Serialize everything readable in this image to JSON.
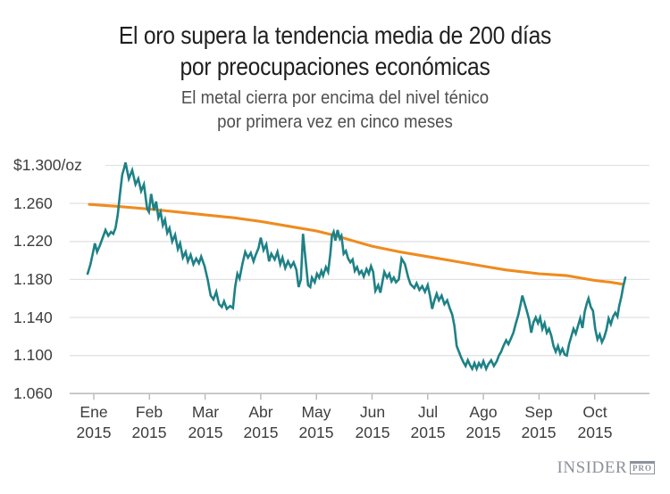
{
  "header": {
    "title_line1": "El oro supera la tendencia media de 200 días",
    "title_line2": "por preocupaciones económicas",
    "subtitle_line1": "El metal cierra por encima del nivel ténico",
    "subtitle_line2": "por primera vez en cinco meses"
  },
  "branding": {
    "name": "INSIDER",
    "badge": "PRO"
  },
  "colors": {
    "gold_line": "#1e8186",
    "ma_line": "#ef8b1f",
    "grid": "#e2e2e2",
    "axis": "#bcbcbc",
    "title_text": "#1f1f1f",
    "subtitle_text": "#4e4e4e",
    "axis_text": "#3d3d3d",
    "logo": "#8d929b"
  },
  "chart_data": {
    "type": "line",
    "title": "El oro supera la tendencia media de 200 días por preocupaciones económicas",
    "x_unit": "months from Ene 2015 tick (0 = Ene, 9 = Oct)",
    "y_unit": "USD per troy ounce",
    "grid": true,
    "legend_position": "none",
    "y_axis": {
      "ticks": [
        1300,
        1260,
        1220,
        1180,
        1140,
        1100,
        1060
      ],
      "labels": [
        "$1.300/oz",
        "1.260",
        "1.220",
        "1.180",
        "1.140",
        "1.100",
        "1.060"
      ],
      "range": [
        1060,
        1310
      ]
    },
    "x_axis": {
      "months": [
        "Ene",
        "Feb",
        "Mar",
        "Abr",
        "May",
        "Jun",
        "Jul",
        "Ago",
        "Sep",
        "Oct"
      ],
      "year": "2015"
    },
    "series": [
      {
        "id": "media-movil-200-dias",
        "color": "#ef8b1f",
        "width": 3.1,
        "points": [
          [
            -0.08,
            1259
          ],
          [
            0.4,
            1257
          ],
          [
            1.0,
            1254
          ],
          [
            1.5,
            1251
          ],
          [
            2.0,
            1248
          ],
          [
            2.5,
            1245
          ],
          [
            3.0,
            1241
          ],
          [
            3.5,
            1236
          ],
          [
            4.0,
            1231
          ],
          [
            4.35,
            1226
          ],
          [
            4.7,
            1220
          ],
          [
            5.0,
            1215
          ],
          [
            5.5,
            1209
          ],
          [
            6.0,
            1204
          ],
          [
            6.5,
            1199
          ],
          [
            7.0,
            1194
          ],
          [
            7.4,
            1190
          ],
          [
            8.0,
            1186
          ],
          [
            8.5,
            1184
          ],
          [
            9.0,
            1179
          ],
          [
            9.3,
            1177
          ],
          [
            9.5,
            1175
          ]
        ]
      },
      {
        "id": "precio-oro",
        "color": "#1e8186",
        "width": 2.6,
        "points": [
          [
            -0.11,
            1186
          ],
          [
            -0.06,
            1196
          ],
          [
            -0.02,
            1207
          ],
          [
            0.02,
            1218
          ],
          [
            0.06,
            1209
          ],
          [
            0.11,
            1216
          ],
          [
            0.16,
            1224
          ],
          [
            0.21,
            1232
          ],
          [
            0.26,
            1226
          ],
          [
            0.31,
            1230
          ],
          [
            0.35,
            1228
          ],
          [
            0.39,
            1234
          ],
          [
            0.43,
            1248
          ],
          [
            0.47,
            1270
          ],
          [
            0.51,
            1290
          ],
          [
            0.54,
            1296
          ],
          [
            0.57,
            1303
          ],
          [
            0.63,
            1286
          ],
          [
            0.69,
            1295
          ],
          [
            0.75,
            1280
          ],
          [
            0.8,
            1286
          ],
          [
            0.85,
            1273
          ],
          [
            0.9,
            1280
          ],
          [
            0.96,
            1254
          ],
          [
            0.99,
            1251
          ],
          [
            1.03,
            1270
          ],
          [
            1.08,
            1253
          ],
          [
            1.12,
            1262
          ],
          [
            1.16,
            1245
          ],
          [
            1.2,
            1251
          ],
          [
            1.24,
            1237
          ],
          [
            1.28,
            1243
          ],
          [
            1.32,
            1229
          ],
          [
            1.36,
            1234
          ],
          [
            1.41,
            1220
          ],
          [
            1.46,
            1227
          ],
          [
            1.51,
            1212
          ],
          [
            1.55,
            1218
          ],
          [
            1.6,
            1203
          ],
          [
            1.65,
            1209
          ],
          [
            1.69,
            1199
          ],
          [
            1.74,
            1206
          ],
          [
            1.79,
            1196
          ],
          [
            1.84,
            1202
          ],
          [
            1.89,
            1197
          ],
          [
            1.93,
            1204
          ],
          [
            1.99,
            1194
          ],
          [
            2.05,
            1179
          ],
          [
            2.1,
            1163
          ],
          [
            2.15,
            1159
          ],
          [
            2.2,
            1167
          ],
          [
            2.25,
            1154
          ],
          [
            2.3,
            1151
          ],
          [
            2.34,
            1157
          ],
          [
            2.39,
            1149
          ],
          [
            2.45,
            1152
          ],
          [
            2.5,
            1150
          ],
          [
            2.54,
            1172
          ],
          [
            2.58,
            1186
          ],
          [
            2.62,
            1181
          ],
          [
            2.67,
            1196
          ],
          [
            2.72,
            1209
          ],
          [
            2.77,
            1203
          ],
          [
            2.82,
            1208
          ],
          [
            2.87,
            1199
          ],
          [
            2.91,
            1206
          ],
          [
            2.96,
            1213
          ],
          [
            3.0,
            1224
          ],
          [
            3.05,
            1211
          ],
          [
            3.1,
            1217
          ],
          [
            3.15,
            1199
          ],
          [
            3.19,
            1207
          ],
          [
            3.25,
            1201
          ],
          [
            3.3,
            1209
          ],
          [
            3.35,
            1196
          ],
          [
            3.39,
            1203
          ],
          [
            3.44,
            1192
          ],
          [
            3.49,
            1199
          ],
          [
            3.54,
            1193
          ],
          [
            3.59,
            1198
          ],
          [
            3.64,
            1190
          ],
          [
            3.68,
            1172
          ],
          [
            3.72,
            1180
          ],
          [
            3.76,
            1228
          ],
          [
            3.8,
            1204
          ],
          [
            3.85,
            1174
          ],
          [
            3.89,
            1172
          ],
          [
            3.92,
            1182
          ],
          [
            3.97,
            1177
          ],
          [
            4.01,
            1186
          ],
          [
            4.05,
            1182
          ],
          [
            4.09,
            1189
          ],
          [
            4.12,
            1184
          ],
          [
            4.17,
            1193
          ],
          [
            4.21,
            1188
          ],
          [
            4.25,
            1207
          ],
          [
            4.28,
            1226
          ],
          [
            4.31,
            1230
          ],
          [
            4.34,
            1221
          ],
          [
            4.38,
            1232
          ],
          [
            4.42,
            1223
          ],
          [
            4.45,
            1226
          ],
          [
            4.49,
            1207
          ],
          [
            4.53,
            1210
          ],
          [
            4.57,
            1202
          ],
          [
            4.61,
            1198
          ],
          [
            4.65,
            1201
          ],
          [
            4.69,
            1189
          ],
          [
            4.73,
            1193
          ],
          [
            4.77,
            1186
          ],
          [
            4.81,
            1189
          ],
          [
            4.85,
            1183
          ],
          [
            4.9,
            1191
          ],
          [
            4.94,
            1186
          ],
          [
            4.98,
            1194
          ],
          [
            5.02,
            1188
          ],
          [
            5.06,
            1168
          ],
          [
            5.11,
            1174
          ],
          [
            5.15,
            1166
          ],
          [
            5.22,
            1188
          ],
          [
            5.27,
            1182
          ],
          [
            5.31,
            1186
          ],
          [
            5.35,
            1178
          ],
          [
            5.39,
            1182
          ],
          [
            5.43,
            1177
          ],
          [
            5.48,
            1180
          ],
          [
            5.53,
            1202
          ],
          [
            5.59,
            1196
          ],
          [
            5.65,
            1182
          ],
          [
            5.69,
            1175
          ],
          [
            5.76,
            1171
          ],
          [
            5.8,
            1176
          ],
          [
            5.85,
            1169
          ],
          [
            5.9,
            1173
          ],
          [
            5.95,
            1167
          ],
          [
            6.0,
            1174
          ],
          [
            6.04,
            1163
          ],
          [
            6.08,
            1149
          ],
          [
            6.12,
            1158
          ],
          [
            6.16,
            1165
          ],
          [
            6.2,
            1158
          ],
          [
            6.25,
            1163
          ],
          [
            6.3,
            1154
          ],
          [
            6.35,
            1158
          ],
          [
            6.4,
            1149
          ],
          [
            6.44,
            1143
          ],
          [
            6.48,
            1131
          ],
          [
            6.52,
            1110
          ],
          [
            6.56,
            1104
          ],
          [
            6.6,
            1098
          ],
          [
            6.64,
            1093
          ],
          [
            6.68,
            1089
          ],
          [
            6.72,
            1095
          ],
          [
            6.76,
            1090
          ],
          [
            6.8,
            1086
          ],
          [
            6.84,
            1092
          ],
          [
            6.88,
            1086
          ],
          [
            6.92,
            1092
          ],
          [
            6.96,
            1088
          ],
          [
            7.0,
            1094
          ],
          [
            7.05,
            1086
          ],
          [
            7.09,
            1091
          ],
          [
            7.14,
            1095
          ],
          [
            7.19,
            1089
          ],
          [
            7.24,
            1094
          ],
          [
            7.28,
            1100
          ],
          [
            7.32,
            1104
          ],
          [
            7.36,
            1110
          ],
          [
            7.41,
            1116
          ],
          [
            7.45,
            1112
          ],
          [
            7.49,
            1117
          ],
          [
            7.54,
            1124
          ],
          [
            7.58,
            1133
          ],
          [
            7.63,
            1143
          ],
          [
            7.67,
            1154
          ],
          [
            7.7,
            1163
          ],
          [
            7.74,
            1155
          ],
          [
            7.78,
            1147
          ],
          [
            7.82,
            1138
          ],
          [
            7.86,
            1124
          ],
          [
            7.9,
            1135
          ],
          [
            7.94,
            1140
          ],
          [
            7.98,
            1134
          ],
          [
            8.02,
            1140
          ],
          [
            8.06,
            1128
          ],
          [
            8.1,
            1134
          ],
          [
            8.14,
            1124
          ],
          [
            8.18,
            1128
          ],
          [
            8.22,
            1121
          ],
          [
            8.26,
            1110
          ],
          [
            8.3,
            1104
          ],
          [
            8.34,
            1110
          ],
          [
            8.38,
            1102
          ],
          [
            8.42,
            1107
          ],
          [
            8.46,
            1101
          ],
          [
            8.5,
            1100
          ],
          [
            8.54,
            1112
          ],
          [
            8.58,
            1120
          ],
          [
            8.62,
            1128
          ],
          [
            8.66,
            1123
          ],
          [
            8.7,
            1131
          ],
          [
            8.74,
            1139
          ],
          [
            8.78,
            1129
          ],
          [
            8.82,
            1146
          ],
          [
            8.86,
            1155
          ],
          [
            8.89,
            1160
          ],
          [
            8.93,
            1151
          ],
          [
            8.97,
            1147
          ],
          [
            9.01,
            1128
          ],
          [
            9.05,
            1117
          ],
          [
            9.09,
            1122
          ],
          [
            9.13,
            1114
          ],
          [
            9.17,
            1119
          ],
          [
            9.21,
            1127
          ],
          [
            9.25,
            1139
          ],
          [
            9.29,
            1133
          ],
          [
            9.33,
            1141
          ],
          [
            9.37,
            1145
          ],
          [
            9.41,
            1141
          ],
          [
            9.44,
            1152
          ],
          [
            9.48,
            1162
          ],
          [
            9.51,
            1172
          ],
          [
            9.55,
            1182
          ]
        ]
      }
    ]
  }
}
